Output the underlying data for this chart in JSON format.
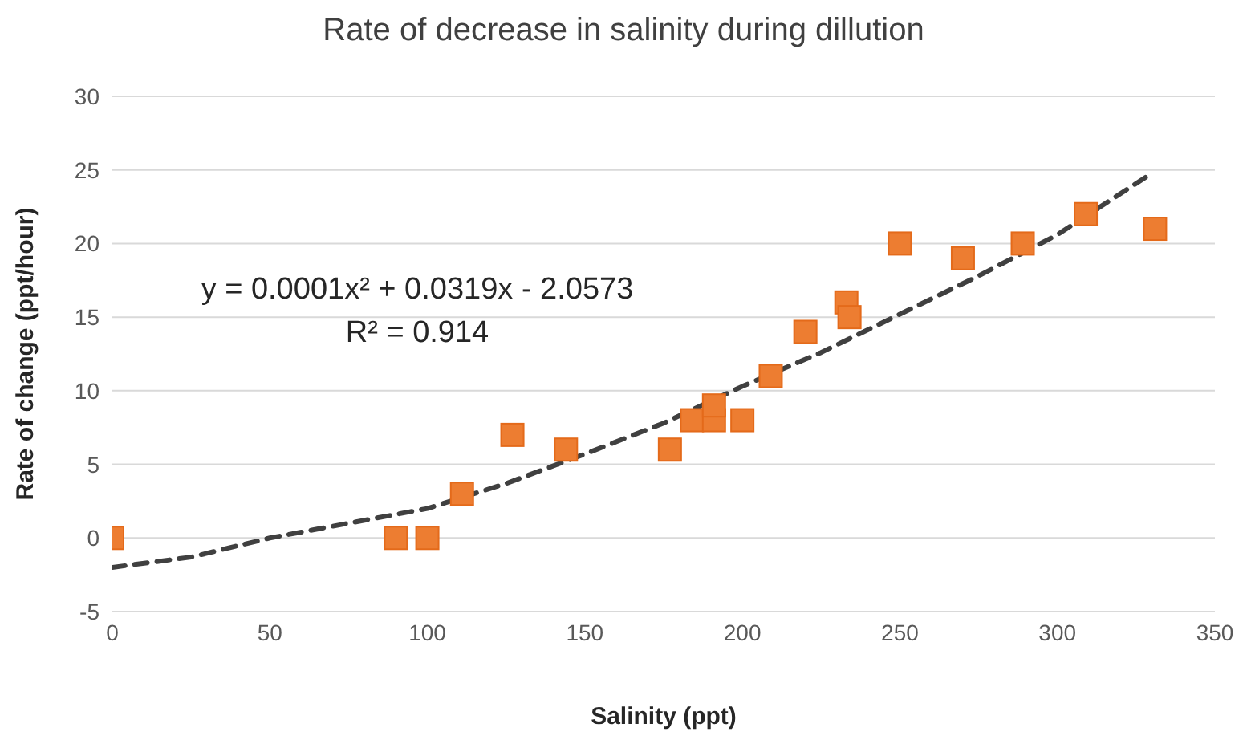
{
  "chart_data": {
    "type": "scatter",
    "title": "Rate of decrease in salinity during dillution",
    "xlabel": "Salinity (ppt)",
    "ylabel": "Rate of change (ppt/hour)",
    "series": [
      {
        "color": "#ed7d31",
        "marker": "square",
        "x": [
          0,
          90,
          100,
          111,
          127,
          144,
          177,
          184,
          191,
          191,
          200,
          209,
          220,
          233,
          234,
          250,
          270,
          289,
          309,
          331
        ],
        "values": [
          0,
          0,
          0,
          3,
          7,
          6,
          6,
          8,
          8,
          9,
          8,
          11,
          14,
          16,
          15,
          20,
          19,
          20,
          22,
          21
        ]
      },
      {
        "type": "line",
        "color": "#404040",
        "line_style": "dashed",
        "marker": "none",
        "x": [
          0,
          25,
          50,
          75,
          100,
          125,
          150,
          175,
          200,
          225,
          250,
          275,
          300,
          328
        ],
        "values": [
          -2,
          -1.3,
          0,
          1,
          2,
          3.7,
          5.7,
          7.8,
          10.3,
          12.6,
          15.2,
          17.8,
          20.6,
          24.5
        ]
      }
    ],
    "annotations": [
      "y = 0.0001x² + 0.0319x - 2.0573",
      "R² = 0.914"
    ],
    "xlim": [
      0,
      350
    ],
    "xticks": [
      0,
      50,
      100,
      150,
      200,
      250,
      300,
      350
    ],
    "ylim": [
      -5,
      30
    ],
    "yticks": [
      -5,
      0,
      5,
      10,
      15,
      20,
      25,
      30
    ],
    "grid": "y",
    "legend": false
  }
}
